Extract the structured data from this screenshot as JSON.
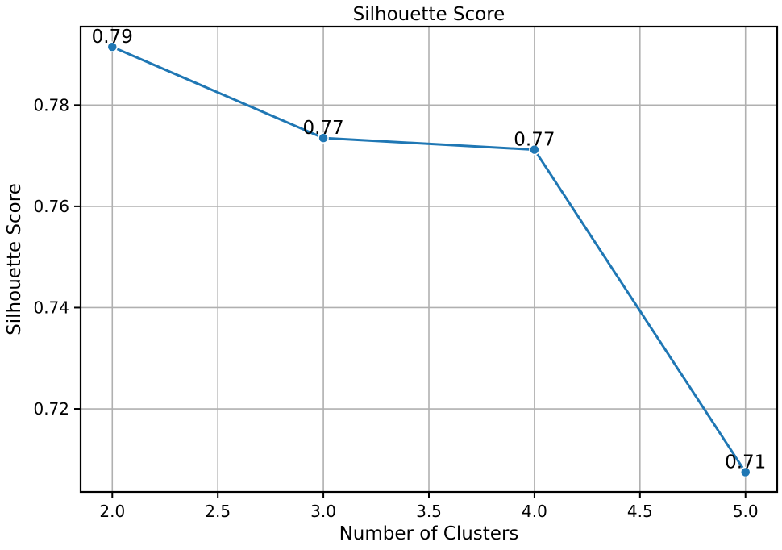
{
  "chart_data": {
    "type": "line",
    "title": "Silhouette Score",
    "xlabel": "Number of Clusters",
    "ylabel": "Silhouette Score",
    "x": [
      2.0,
      3.0,
      4.0,
      5.0
    ],
    "series": [
      {
        "values": [
          0.7915,
          0.7735,
          0.7712,
          0.7075
        ],
        "labels": [
          "0.79",
          "0.77",
          "0.77",
          "0.71"
        ],
        "color": "#1f77b4"
      }
    ],
    "xlim": [
      1.85,
      5.15
    ],
    "ylim": [
      0.7036,
      0.7955
    ],
    "xticks": [
      2.0,
      2.5,
      3.0,
      3.5,
      4.0,
      4.5,
      5.0
    ],
    "xtick_labels": [
      "2.0",
      "2.5",
      "3.0",
      "3.5",
      "4.0",
      "4.5",
      "5.0"
    ],
    "yticks": [
      0.72,
      0.74,
      0.76,
      0.78
    ],
    "ytick_labels": [
      "0.72",
      "0.74",
      "0.76",
      "0.78"
    ],
    "grid": true,
    "colors": {
      "line": "#1f77b4",
      "grid": "#b0b0b0",
      "axes": "#000000"
    }
  }
}
